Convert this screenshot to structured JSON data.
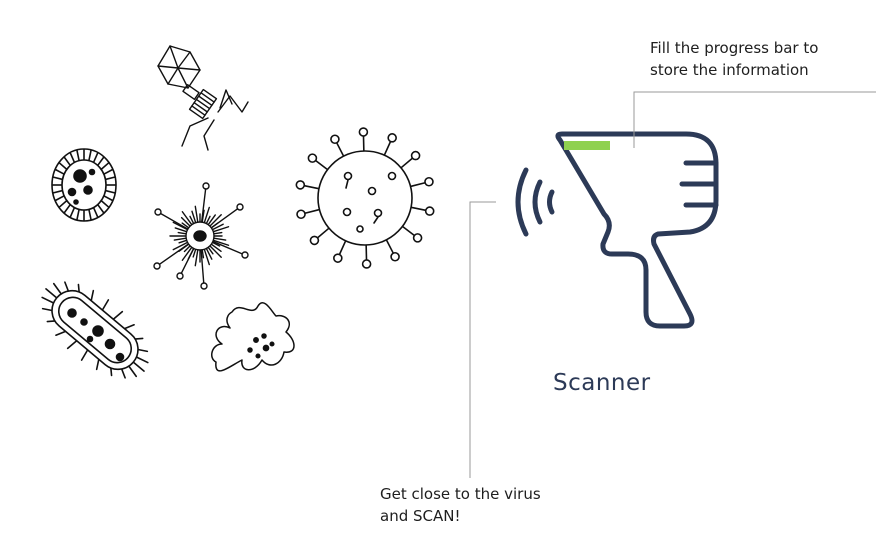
{
  "annotations": {
    "top": {
      "line1": "Fill the progress bar to",
      "line2": "store the information"
    },
    "bottom": {
      "line1": "Get close to the virus",
      "line2": "and SCAN!"
    }
  },
  "scanner": {
    "label": "Scanner",
    "progress": 0.35,
    "progress_color": "#8fd14f",
    "body_color": "#2c3a57"
  },
  "microbes": [
    "bacteriophage",
    "protozoan-cell",
    "spiky-microbe",
    "coronavirus",
    "bacillus-bacterium",
    "amoeba"
  ]
}
